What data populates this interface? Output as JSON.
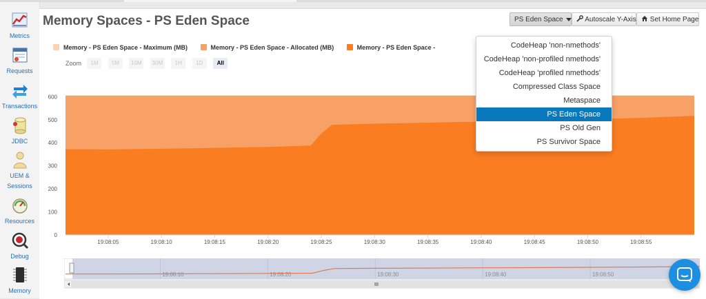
{
  "sidebar": {
    "items": [
      {
        "label": "Metrics",
        "icon": "metrics-icon"
      },
      {
        "label": "Requests",
        "icon": "requests-icon"
      },
      {
        "label": "Transactions",
        "icon": "transactions-icon"
      },
      {
        "label": "JDBC",
        "icon": "jdbc-icon"
      },
      {
        "label": "UEM &",
        "label2": "Sessions",
        "icon": "uem-sessions-icon"
      },
      {
        "label": "Resources",
        "icon": "resources-icon"
      },
      {
        "label": "Debug",
        "icon": "debug-icon"
      },
      {
        "label": "Memory",
        "icon": "memory-icon"
      }
    ]
  },
  "header": {
    "title": "Memory Spaces - PS Eden Space",
    "space_select_label": "PS Eden Space",
    "autoscale_label": "Autoscale Y-Axis",
    "home_label": "Set Home Page"
  },
  "zoom": {
    "label": "Zoom",
    "buttons": [
      "1M",
      "5M",
      "10M",
      "30M",
      "1H",
      "1D",
      "All"
    ],
    "selected": "All"
  },
  "dropdown": {
    "items": [
      "CodeHeap 'non-nmethods'",
      "CodeHeap 'non-profiled nmethods'",
      "CodeHeap 'profiled nmethods'",
      "Compressed Class Space",
      "Metaspace",
      "PS Eden Space",
      "PS Old Gen",
      "PS Survivor Space"
    ],
    "selected": "PS Eden Space"
  },
  "colors": {
    "maximum": "#fdd2b1",
    "allocated": "#f7a166",
    "used": "#fa7d22",
    "selected_item": "#0a78bd",
    "nav_fill": "#d0d5e6",
    "chat": "#1d8fe0"
  },
  "chart_data": {
    "type": "area",
    "legend": [
      "Memory - PS Eden Space - Maximum (MB)",
      "Memory - PS Eden Space - Allocated (MB)",
      "Memory - PS Eden Space -"
    ],
    "ylim": [
      0,
      600
    ],
    "yticks": [
      0,
      100,
      200,
      300,
      400,
      500,
      600
    ],
    "xticks": [
      "19:08:05",
      "19:08:10",
      "19:08:15",
      "19:08:20",
      "19:08:25",
      "19:08:30",
      "19:08:35",
      "19:08:40",
      "19:08:45",
      "19:08:50",
      "19:08:55"
    ],
    "navigator_ticks": [
      "19:08:10",
      "19:08:20",
      "19:08:30",
      "19:08:40",
      "19:08:50"
    ],
    "series": [
      {
        "name": "Memory - PS Eden Space - Maximum (MB)",
        "x": [
          "19:08:01",
          "19:09:00"
        ],
        "values": [
          605,
          605
        ]
      },
      {
        "name": "Memory - PS Eden Space - Allocated (MB)",
        "x": [
          "19:08:01",
          "19:09:00"
        ],
        "values": [
          605,
          605
        ]
      },
      {
        "name": "Memory - PS Eden Space -",
        "x": [
          "19:08:01",
          "19:08:03",
          "19:08:05",
          "19:08:10",
          "19:08:15",
          "19:08:20",
          "19:08:24",
          "19:08:25",
          "19:08:26",
          "19:08:30",
          "19:08:35",
          "19:08:40",
          "19:08:45",
          "19:08:50",
          "19:08:55",
          "19:09:00"
        ],
        "values": [
          372,
          372,
          371,
          374,
          378,
          382,
          388,
          440,
          478,
          483,
          487,
          492,
          496,
          502,
          508,
          517
        ]
      }
    ]
  }
}
